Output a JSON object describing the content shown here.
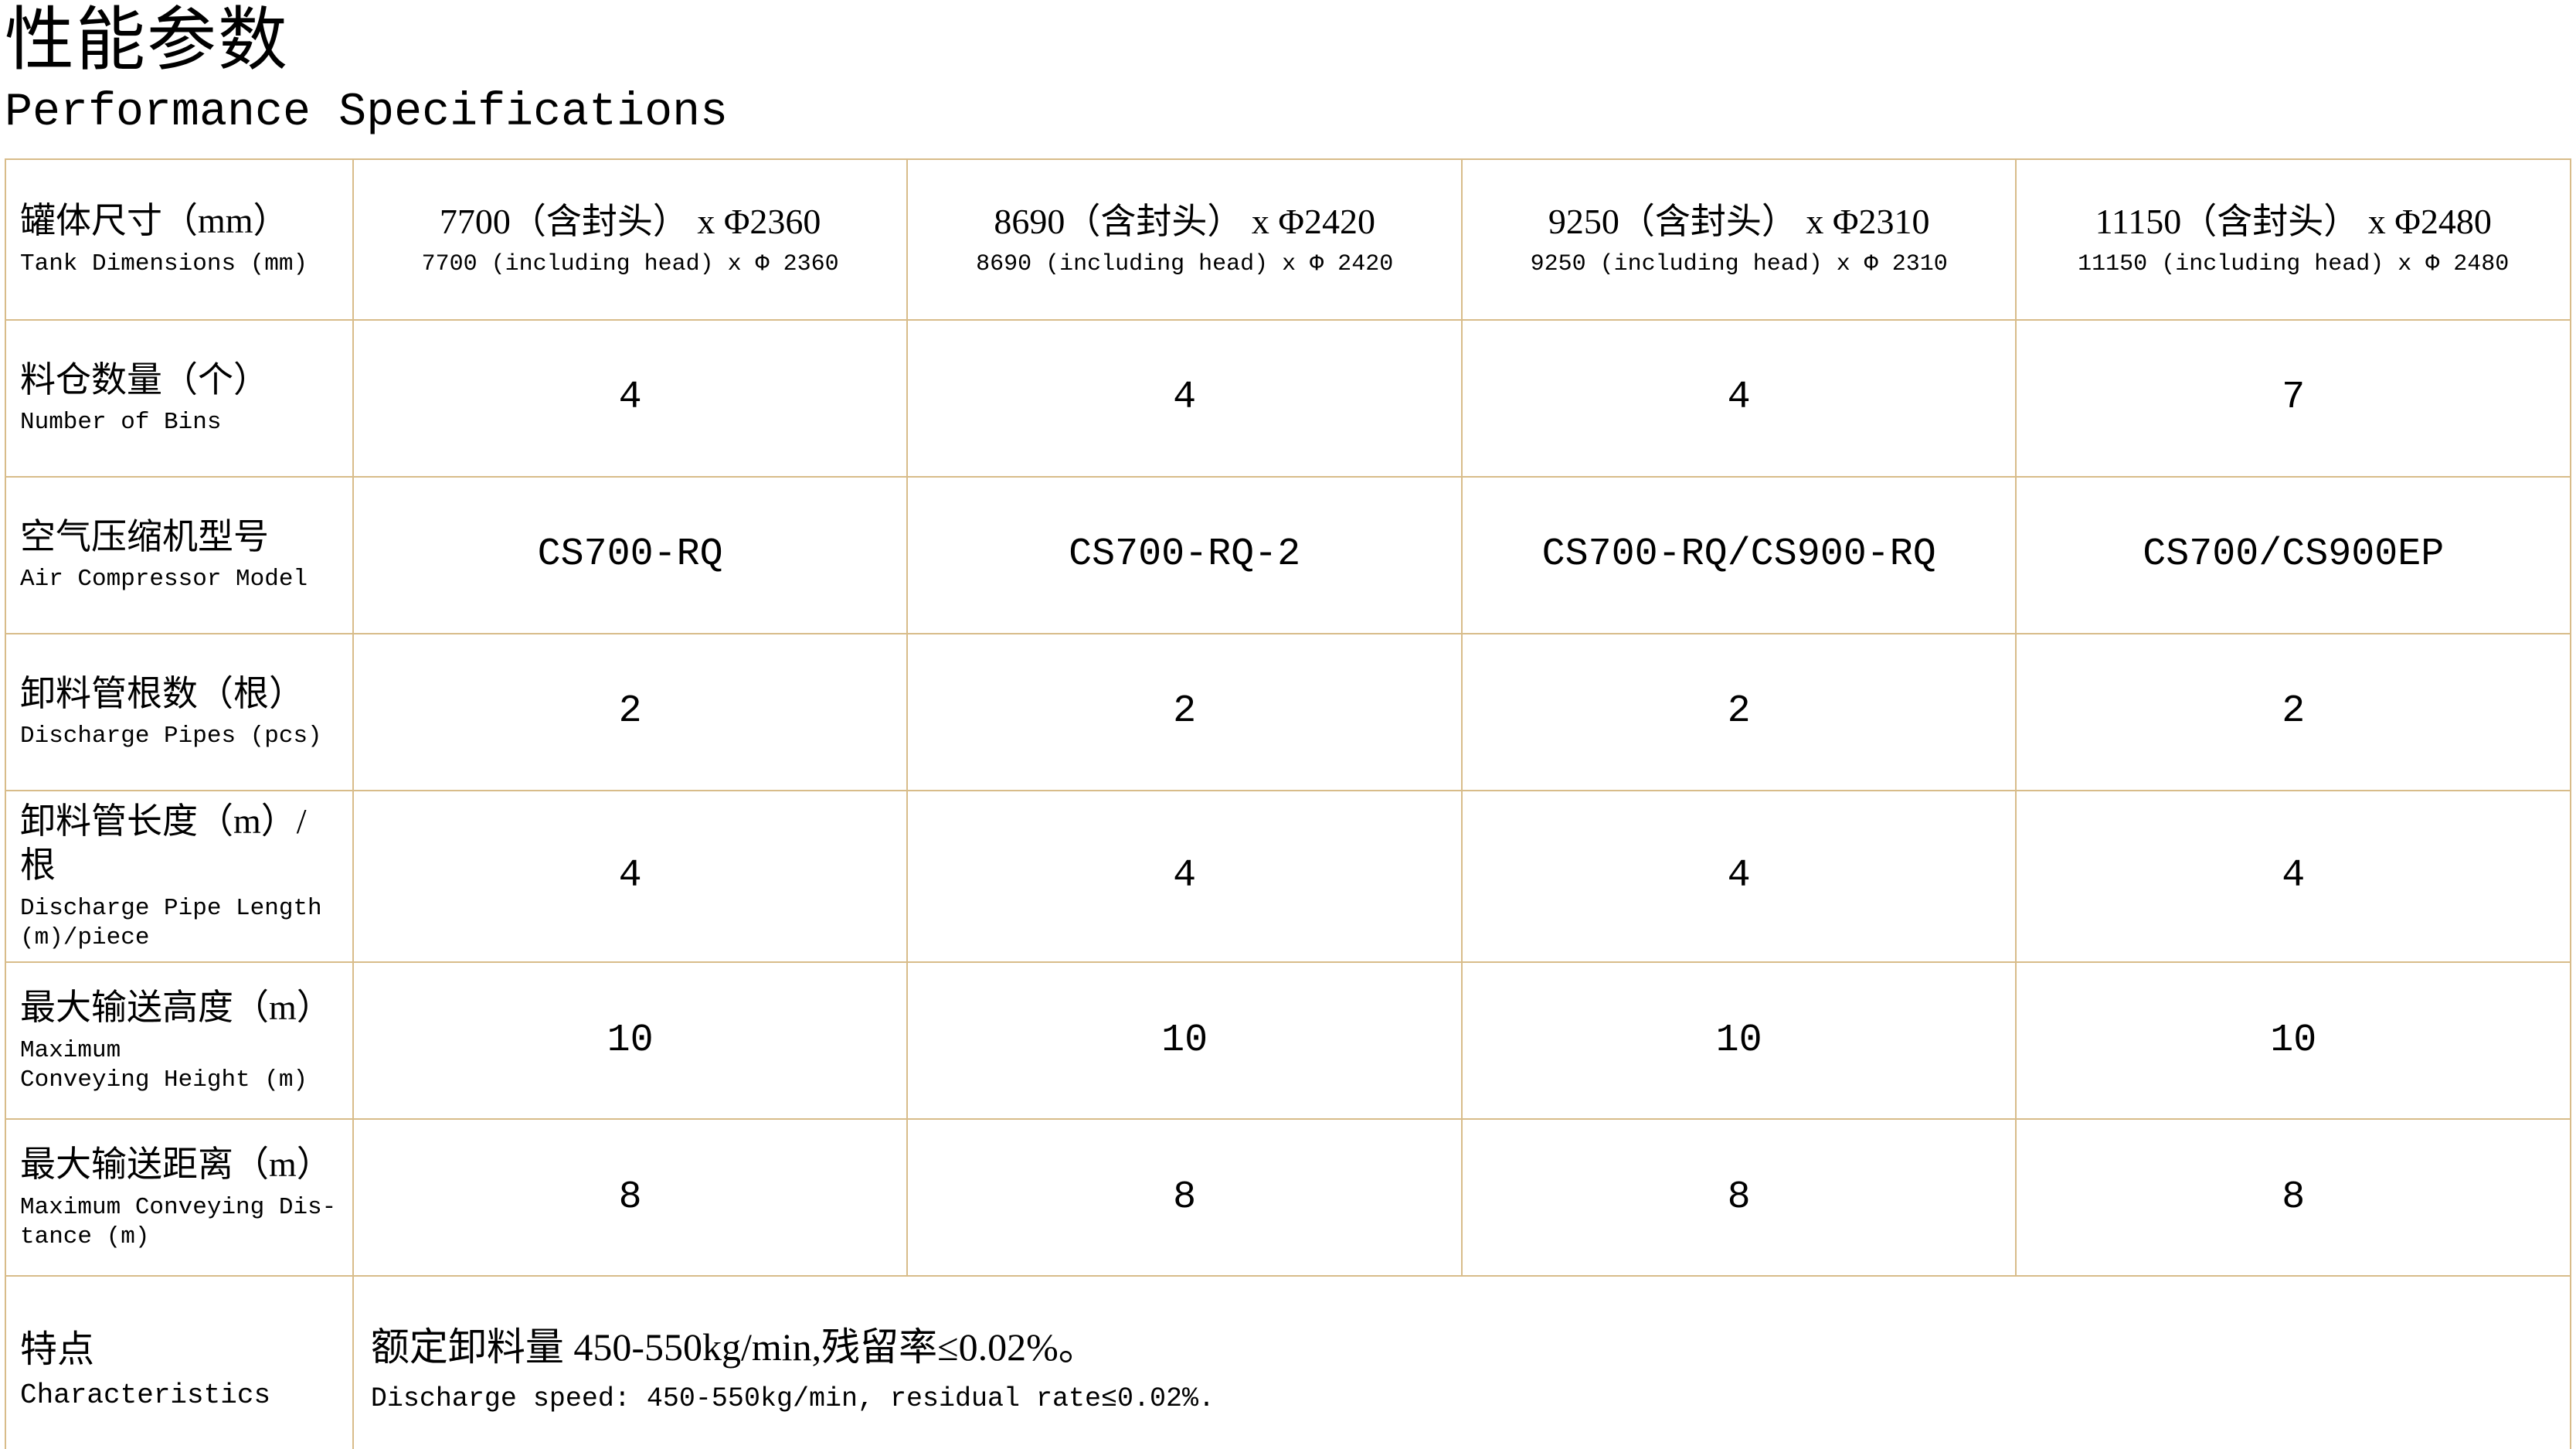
{
  "header": {
    "title_zh": "性能参数",
    "title_en": "Performance Specifications"
  },
  "table": {
    "border_color": "#d8bc8a",
    "rows": [
      {
        "id": "tank-dimensions",
        "label_zh": "罐体尺寸（mm）",
        "label_en": "Tank Dimensions (mm)",
        "values": [
          {
            "zh": "7700（含封头） x Φ2360",
            "en": "7700 (including head) x Φ 2360"
          },
          {
            "zh": "8690（含封头） x Φ2420",
            "en": "8690 (including head) x Φ 2420"
          },
          {
            "zh": "9250（含封头） x Φ2310",
            "en": "9250 (including head) x Φ 2310"
          },
          {
            "zh": "11150（含封头） x Φ2480",
            "en": "11150 (including head) x Φ 2480"
          }
        ]
      },
      {
        "id": "number-of-bins",
        "label_zh": "料仓数量（个）",
        "label_en": "Number of Bins",
        "values": [
          "4",
          "4",
          "4",
          "7"
        ]
      },
      {
        "id": "air-compressor-model",
        "label_zh": "空气压缩机型号",
        "label_en": "Air Compressor Model",
        "values": [
          "CS700-RQ",
          "CS700-RQ-2",
          "CS700-RQ/CS900-RQ",
          "CS700/CS900EP"
        ]
      },
      {
        "id": "discharge-pipes",
        "label_zh": "卸料管根数（根）",
        "label_en": "Discharge Pipes (pcs)",
        "values": [
          "2",
          "2",
          "2",
          "2"
        ]
      },
      {
        "id": "discharge-pipe-length",
        "label_zh": "卸料管长度（m）/根",
        "label_en": "Discharge Pipe Length\n(m)/piece",
        "values": [
          "4",
          "4",
          "4",
          "4"
        ]
      },
      {
        "id": "max-conveying-height",
        "label_zh": "最大输送高度（m）",
        "label_en": "Maximum\nConveying Height (m)",
        "values": [
          "10",
          "10",
          "10",
          "10"
        ]
      },
      {
        "id": "max-conveying-distance",
        "label_zh": "最大输送距离（m）",
        "label_en": "Maximum Conveying Dis-\ntance (m)",
        "values": [
          "8",
          "8",
          "8",
          "8"
        ]
      },
      {
        "id": "characteristics",
        "label_zh": "特点",
        "label_en": "Characteristics",
        "note_zh": "额定卸料量 450-550kg/min,残留率≤0.02%。",
        "note_en": "Discharge speed: 450-550kg/min, residual rate≤0.02%."
      }
    ]
  }
}
